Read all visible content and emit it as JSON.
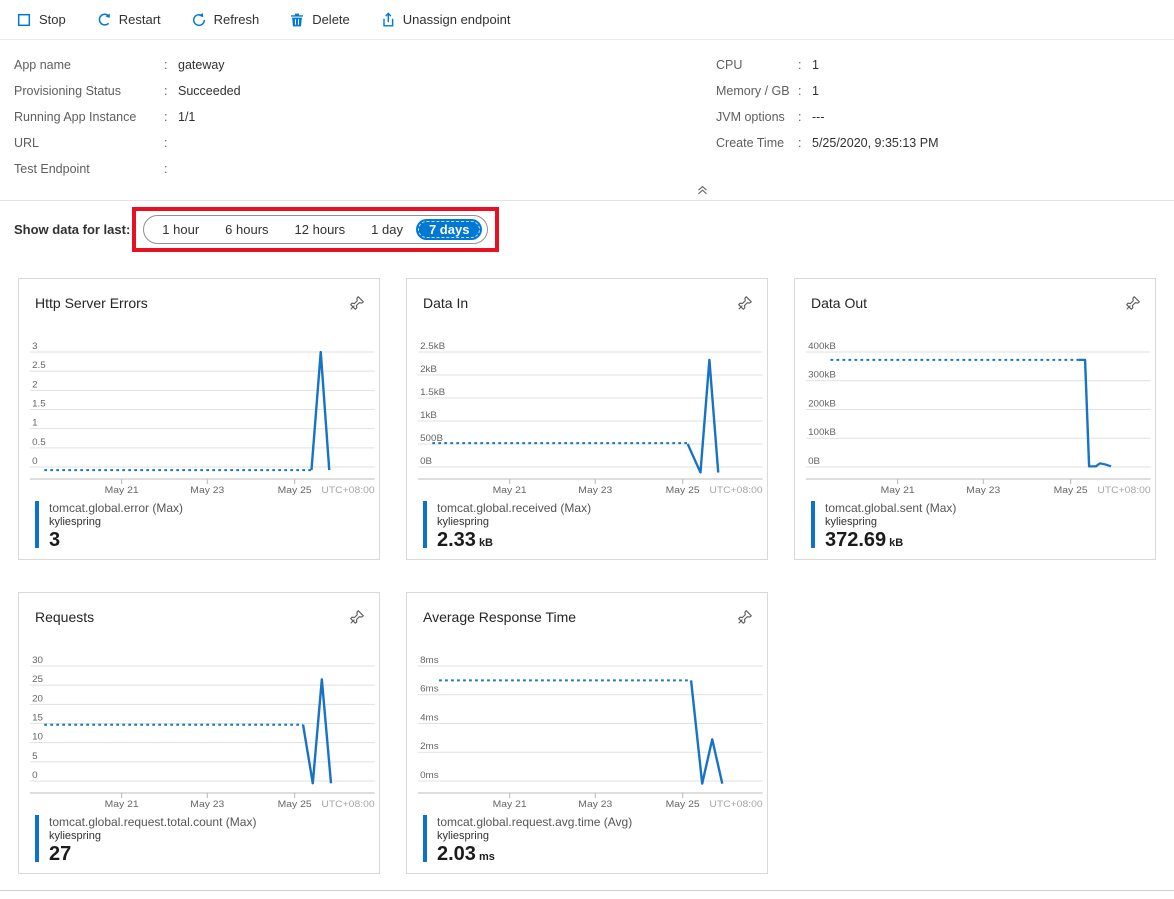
{
  "toolbar": {
    "buttons": [
      {
        "icon": "stop-icon",
        "label": "Stop"
      },
      {
        "icon": "restart-icon",
        "label": "Restart"
      },
      {
        "icon": "refresh-icon",
        "label": "Refresh"
      },
      {
        "icon": "delete-icon",
        "label": "Delete"
      },
      {
        "icon": "unassign-endpoint-icon",
        "label": "Unassign endpoint"
      }
    ]
  },
  "info": {
    "separator": ":",
    "left": [
      {
        "label": "App name",
        "value": "gateway"
      },
      {
        "label": "Provisioning Status",
        "value": "Succeeded"
      },
      {
        "label": "Running App Instance",
        "value": "1/1"
      },
      {
        "label": "URL",
        "value": ""
      },
      {
        "label": "Test Endpoint",
        "value": ""
      }
    ],
    "right": [
      {
        "label": "CPU",
        "value": "1"
      },
      {
        "label": "Memory / GB",
        "value": "1"
      },
      {
        "label": "JVM options",
        "value": "---"
      },
      {
        "label": "Create Time",
        "value": "5/25/2020, 9:35:13 PM"
      }
    ]
  },
  "time_selector": {
    "label": "Show data for last:",
    "options": [
      "1 hour",
      "6 hours",
      "12 hours",
      "1 day",
      "7 days"
    ],
    "selected": "7 days"
  },
  "colors": {
    "accent": "#0078d4",
    "line": "#1673c5",
    "legend_bar": "#0c72ce",
    "annotation": "#e81123",
    "gridline": "#e1e1e1",
    "axis": "#bcbcbc"
  },
  "chart_data": [
    {
      "type": "line",
      "title": "Http Server Errors",
      "ylim": [
        0,
        3
      ],
      "y_tick_labels": [
        "3",
        "2.5",
        "2",
        "1.5",
        "1",
        "0.5",
        "0"
      ],
      "x_tick_labels": [
        "May 21",
        "May 23",
        "May 25"
      ],
      "x_tick_pos": [
        0.26,
        0.515,
        0.775
      ],
      "tz_label": "UTC+08:00",
      "segments": [
        {
          "style": "dashed",
          "points": [
            [
              0.03,
              -0.08
            ],
            [
              0.825,
              -0.08
            ]
          ]
        },
        {
          "style": "solid",
          "points": [
            [
              0.825,
              -0.08
            ],
            [
              0.8525,
              3.0
            ],
            [
              0.878,
              -0.08
            ]
          ]
        }
      ],
      "legend": {
        "metric": "tomcat.global.error (Max)",
        "resource": "kyliespring",
        "value": "3",
        "unit": ""
      }
    },
    {
      "type": "line",
      "title": "Data In",
      "ylim": [
        0,
        2.5
      ],
      "y_tick_labels": [
        "2.5kB",
        "2kB",
        "1.5kB",
        "1kB",
        "500B",
        "0B"
      ],
      "x_tick_labels": [
        "May 21",
        "May 23",
        "May 25"
      ],
      "x_tick_pos": [
        0.26,
        0.515,
        0.775
      ],
      "tz_label": "UTC+08:00",
      "segments": [
        {
          "style": "dashed",
          "points": [
            [
              0.03,
              0.52
            ],
            [
              0.79,
              0.52
            ]
          ]
        },
        {
          "style": "solid",
          "points": [
            [
              0.79,
              0.5
            ],
            [
              0.828,
              -0.12
            ],
            [
              0.8545,
              2.33
            ],
            [
              0.881,
              -0.12
            ]
          ]
        }
      ],
      "legend": {
        "metric": "tomcat.global.received (Max)",
        "resource": "kyliespring",
        "value": "2.33",
        "unit": "kB"
      }
    },
    {
      "type": "line",
      "title": "Data Out",
      "ylim": [
        0,
        400
      ],
      "y_tick_labels": [
        "400kB",
        "300kB",
        "200kB",
        "100kB",
        "0B"
      ],
      "x_tick_labels": [
        "May 21",
        "May 23",
        "May 25"
      ],
      "x_tick_pos": [
        0.26,
        0.515,
        0.775
      ],
      "tz_label": "UTC+08:00",
      "segments": [
        {
          "style": "dashed",
          "points": [
            [
              0.06,
              372.69
            ],
            [
              0.8,
              372.69
            ]
          ]
        },
        {
          "style": "solid",
          "points": [
            [
              0.8,
              372.69
            ],
            [
              0.818,
              372.69
            ],
            [
              0.83,
              2
            ],
            [
              0.85,
              2
            ],
            [
              0.862,
              13
            ],
            [
              0.878,
              9
            ],
            [
              0.895,
              2
            ]
          ]
        }
      ],
      "legend": {
        "metric": "tomcat.global.sent (Max)",
        "resource": "kyliespring",
        "value": "372.69",
        "unit": "kB"
      }
    },
    {
      "type": "line",
      "title": "Requests",
      "ylim": [
        0,
        30
      ],
      "y_tick_labels": [
        "30",
        "25",
        "20",
        "15",
        "10",
        "5",
        "0"
      ],
      "x_tick_labels": [
        "May 21",
        "May 23",
        "May 25"
      ],
      "x_tick_pos": [
        0.26,
        0.515,
        0.775
      ],
      "tz_label": "UTC+08:00",
      "segments": [
        {
          "style": "dashed",
          "points": [
            [
              0.03,
              14.7
            ],
            [
              0.8,
              14.7
            ]
          ]
        },
        {
          "style": "solid",
          "points": [
            [
              0.8,
              14.7
            ],
            [
              0.829,
              -0.6
            ],
            [
              0.856,
              26.5
            ],
            [
              0.883,
              -0.6
            ]
          ]
        }
      ],
      "legend": {
        "metric": "tomcat.global.request.total.count (Max)",
        "resource": "kyliespring",
        "value": "27",
        "unit": ""
      }
    },
    {
      "type": "line",
      "title": "Average Response Time",
      "ylim": [
        0,
        8
      ],
      "y_tick_labels": [
        "8ms",
        "6ms",
        "4ms",
        "2ms",
        "0ms"
      ],
      "x_tick_labels": [
        "May 21",
        "May 23",
        "May 25"
      ],
      "x_tick_pos": [
        0.26,
        0.515,
        0.775
      ],
      "tz_label": "UTC+08:00",
      "segments": [
        {
          "style": "dashed",
          "points": [
            [
              0.05,
              7
            ],
            [
              0.8,
              7
            ]
          ]
        },
        {
          "style": "solid",
          "points": [
            [
              0.8,
              7
            ],
            [
              0.833,
              -0.18
            ],
            [
              0.863,
              2.9
            ],
            [
              0.893,
              -0.18
            ]
          ]
        }
      ],
      "legend": {
        "metric": "tomcat.global.request.avg.time (Avg)",
        "resource": "kyliespring",
        "value": "2.03",
        "unit": "ms"
      }
    }
  ]
}
